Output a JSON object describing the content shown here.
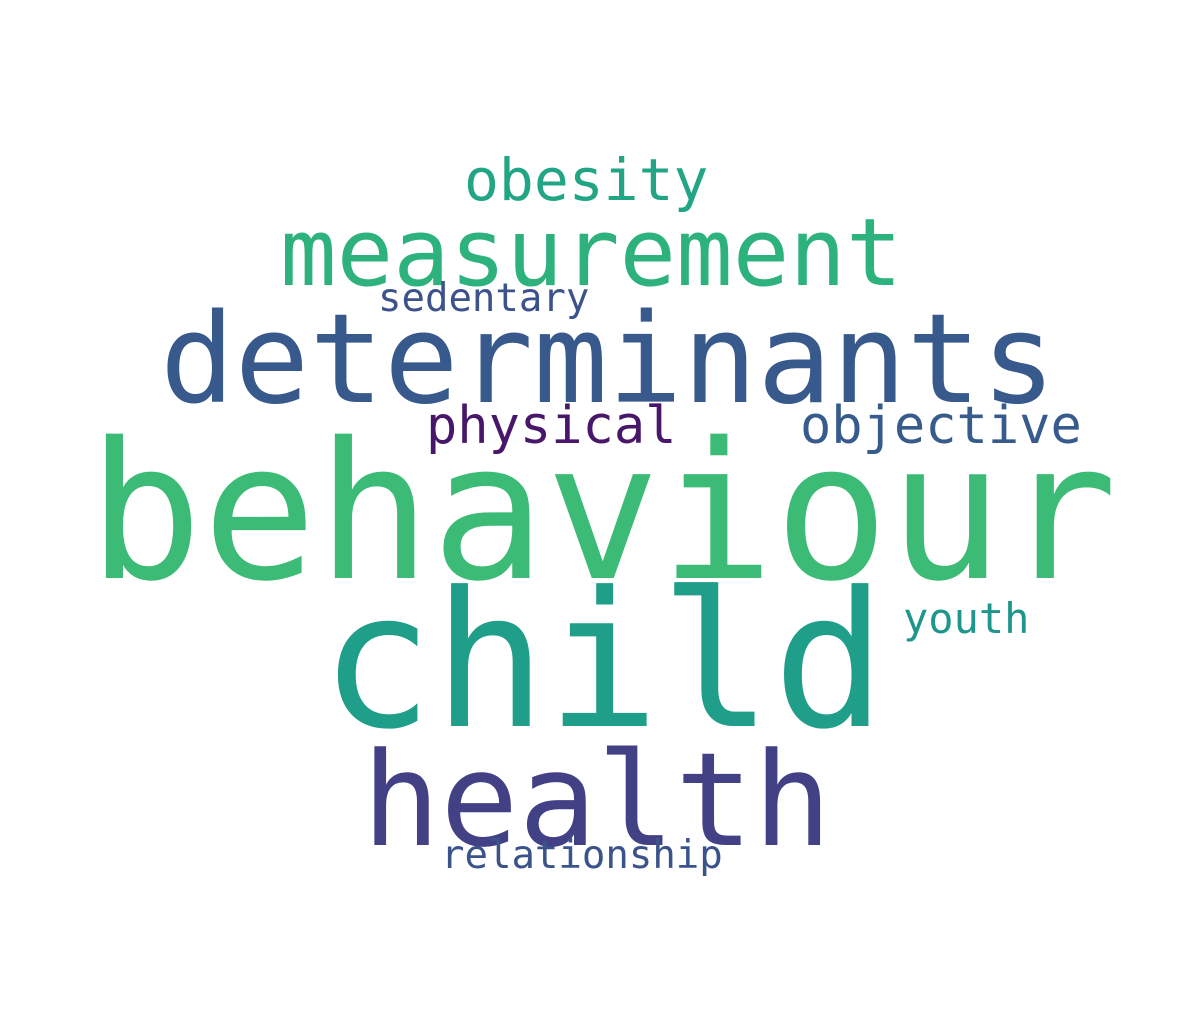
{
  "words": {
    "obesity": {
      "text": "obesity",
      "color": "#21a585"
    },
    "measurement": {
      "text": "measurement",
      "color": "#2db27d"
    },
    "sedentary": {
      "text": "sedentary",
      "color": "#3b528b"
    },
    "determinants": {
      "text": "determinants",
      "color": "#38598c"
    },
    "physical": {
      "text": "physical",
      "color": "#481769"
    },
    "objective": {
      "text": "objective",
      "color": "#375b8d"
    },
    "behaviour": {
      "text": "behaviour",
      "color": "#3bbb75"
    },
    "child": {
      "text": "child",
      "color": "#1f9e89"
    },
    "youth": {
      "text": "youth",
      "color": "#1f968b"
    },
    "health": {
      "text": "health",
      "color": "#424186"
    },
    "relationship": {
      "text": "relationship",
      "color": "#3a538b"
    }
  }
}
